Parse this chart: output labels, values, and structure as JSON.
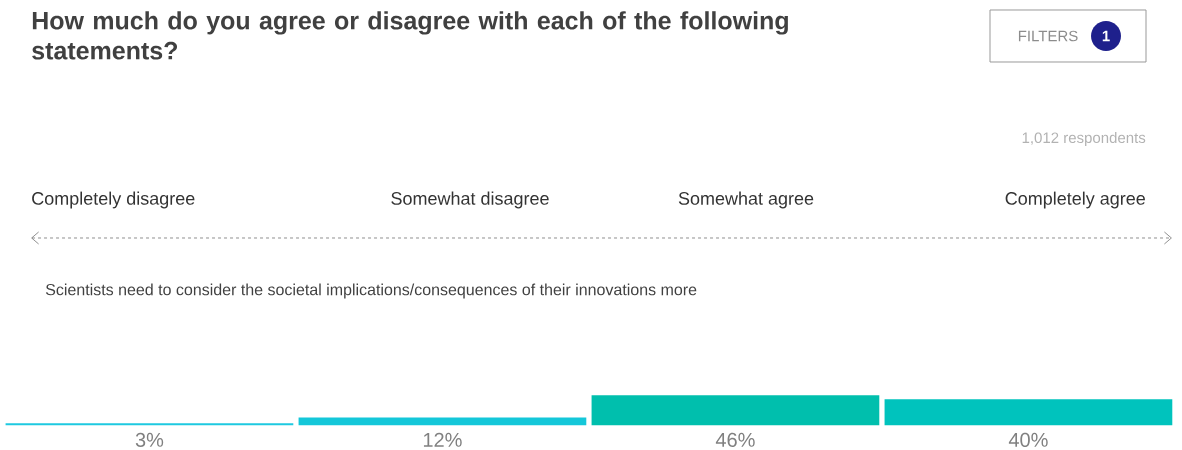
{
  "chart_data": {
    "type": "bar",
    "title": "How much do you agree or disagree with each of the following statements?",
    "subtitle": "Scientists need to consider the societal implications/consequences of their innovations more",
    "categories": [
      "Completely disagree",
      "Somewhat disagree",
      "Somewhat agree",
      "Completely agree"
    ],
    "values": [
      3,
      12,
      46,
      40
    ],
    "value_labels": [
      "3%",
      "12%",
      "46%",
      "40%"
    ],
    "colors": [
      "#1ec9e0",
      "#14c7d9",
      "#00bfad",
      "#00c3bd"
    ],
    "annotations": [
      "1,012 respondents",
      "FILTERS",
      "1"
    ]
  }
}
